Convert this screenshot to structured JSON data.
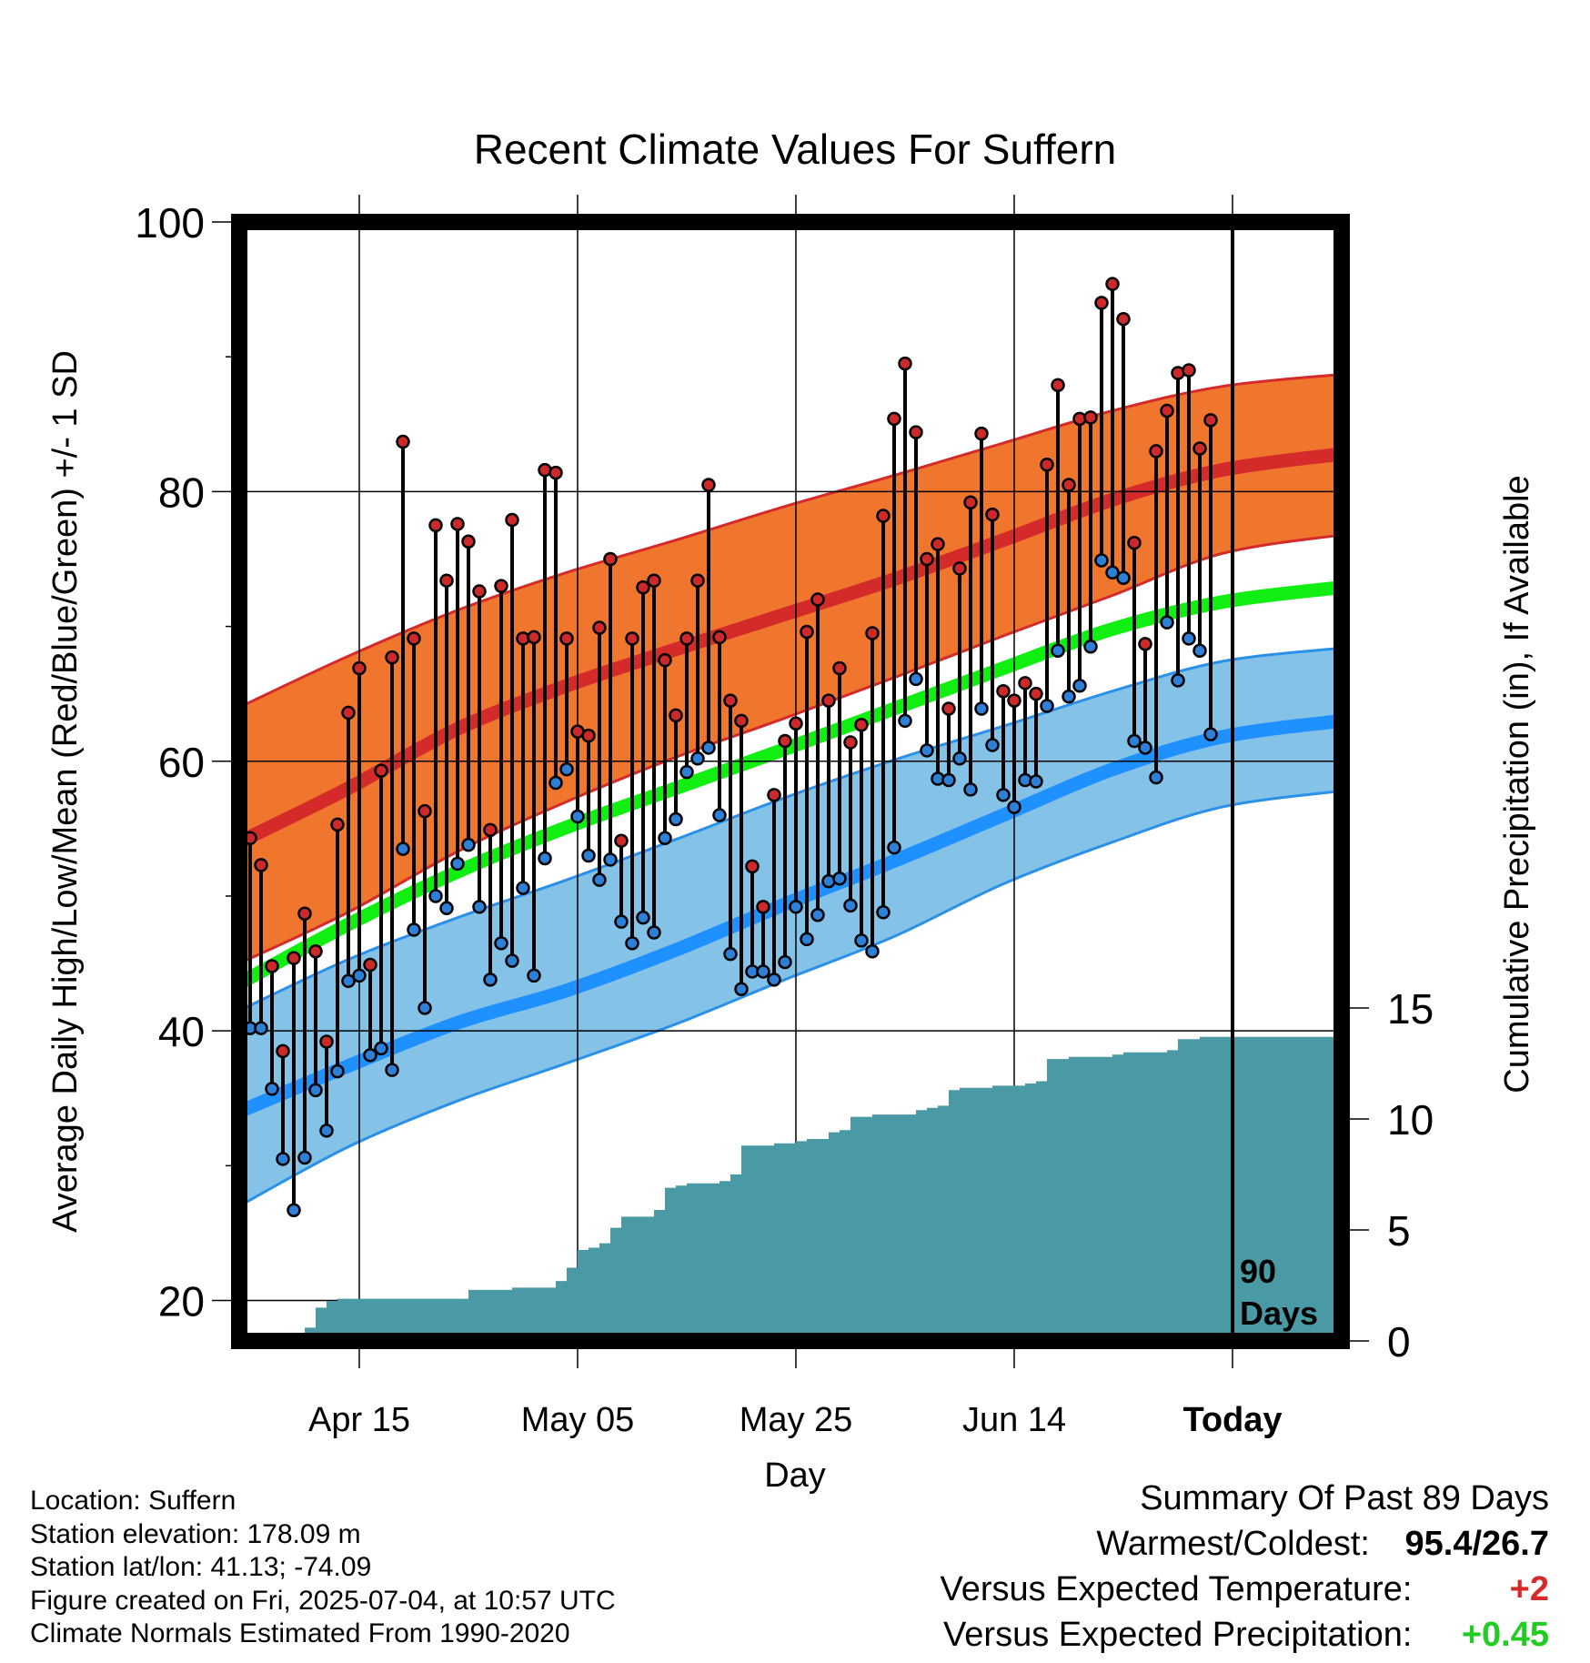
{
  "chart_data": {
    "type": "line",
    "title": "Recent Climate Values For Suffern",
    "xlabel": "Day",
    "ylabel": "Average Daily High/Low/Mean (Red/Blue/Green) +/- 1 SD",
    "y2label": "Cumulative Precipitation (in), If Available",
    "x_tick_labels": [
      "Apr 15",
      "May 05",
      "May 25",
      "Jun 14",
      "Today"
    ],
    "x_tick_days": [
      11,
      31,
      51,
      71,
      91
    ],
    "ylim": [
      17,
      100
    ],
    "yticks": [
      20,
      40,
      60,
      80,
      100
    ],
    "y2lim": [
      0,
      30
    ],
    "y2ticks": [
      0,
      5,
      10,
      15
    ],
    "xlim": [
      0,
      101
    ],
    "today_day": 91,
    "today_annotation": "90\nDays",
    "grid": true,
    "normals": {
      "days": [
        0,
        10,
        20,
        30,
        40,
        50,
        60,
        70,
        80,
        90,
        101
      ],
      "high_mean": [
        54.0,
        58.0,
        62.4,
        65.6,
        68.3,
        70.9,
        73.5,
        76.4,
        79.4,
        81.6,
        82.8
      ],
      "high_upper": [
        64.0,
        67.8,
        71.2,
        74.0,
        76.4,
        78.9,
        81.2,
        83.6,
        86.0,
        87.8,
        88.7
      ],
      "high_lower": [
        45.0,
        48.8,
        53.3,
        57.0,
        60.3,
        63.2,
        66.2,
        69.3,
        72.3,
        75.4,
        76.8
      ],
      "mean_mean": [
        43.5,
        47.9,
        51.8,
        55.1,
        58.0,
        60.9,
        63.9,
        66.9,
        69.8,
        71.8,
        72.9
      ],
      "low_mean": [
        34.0,
        37.4,
        40.6,
        43.0,
        46.0,
        49.4,
        52.6,
        56.0,
        59.4,
        61.8,
        63.0
      ],
      "low_upper": [
        41.5,
        45.3,
        48.4,
        51.2,
        54.2,
        57.3,
        60.1,
        62.6,
        65.2,
        67.4,
        68.4
      ],
      "low_lower": [
        27.0,
        31.4,
        34.8,
        37.6,
        40.5,
        43.8,
        47.0,
        50.9,
        54.0,
        56.6,
        57.8
      ]
    },
    "series": [
      {
        "name": "High",
        "color": "#cc2a2a",
        "values": [
          54.3,
          52.3,
          44.8,
          38.5,
          45.4,
          48.7,
          45.9,
          39.2,
          55.3,
          63.6,
          66.9,
          44.9,
          59.3,
          67.7,
          83.7,
          69.1,
          56.3,
          77.5,
          73.4,
          77.6,
          76.3,
          72.6,
          54.9,
          73.0,
          77.9,
          69.1,
          69.2,
          81.6,
          81.4,
          69.1,
          62.2,
          61.9,
          69.9,
          75.0,
          54.1,
          69.1,
          72.9,
          73.4,
          67.5,
          63.4,
          69.1,
          73.4,
          80.5,
          69.2,
          64.5,
          63.0,
          52.2,
          49.2,
          57.5,
          61.5,
          62.8,
          69.6,
          72.0,
          64.5,
          66.9,
          61.4,
          62.7,
          69.5,
          78.2,
          85.4,
          89.5,
          84.4,
          75.0,
          76.1,
          63.9,
          74.3,
          79.2,
          84.3,
          78.3,
          65.2,
          64.5,
          65.8,
          65.0,
          82.0,
          87.9,
          80.5,
          85.4,
          85.5,
          94.0,
          95.4,
          92.8,
          76.2,
          68.7,
          83.0,
          86.0,
          88.8,
          89.0,
          83.2,
          85.3
        ]
      },
      {
        "name": "Low",
        "color": "#2e7fd6",
        "values": [
          40.2,
          40.2,
          35.7,
          30.5,
          26.7,
          30.6,
          35.6,
          32.6,
          37.0,
          43.7,
          44.1,
          38.2,
          38.7,
          37.1,
          53.5,
          47.5,
          41.7,
          50.0,
          49.1,
          52.4,
          53.8,
          49.2,
          43.8,
          46.5,
          45.2,
          50.6,
          44.1,
          52.8,
          58.4,
          59.4,
          55.9,
          53.0,
          51.2,
          52.7,
          48.1,
          46.5,
          48.4,
          47.3,
          54.3,
          55.7,
          59.2,
          60.2,
          61.0,
          56.0,
          45.7,
          43.1,
          44.4,
          44.4,
          43.8,
          45.1,
          49.2,
          46.8,
          48.6,
          51.1,
          51.3,
          49.3,
          46.7,
          45.9,
          48.8,
          53.6,
          63.0,
          66.1,
          60.8,
          58.7,
          58.6,
          60.2,
          57.9,
          63.9,
          61.2,
          57.5,
          56.6,
          58.6,
          58.5,
          64.1,
          68.2,
          64.8,
          65.6,
          68.5,
          74.9,
          74.0,
          73.6,
          61.5,
          61.0,
          58.8,
          70.3,
          66.0,
          69.1,
          68.2,
          62.0
        ]
      }
    ],
    "precipitation_cumulative": {
      "days": [
        0,
        1,
        2,
        3,
        4,
        5,
        6,
        7,
        8,
        9,
        10,
        20,
        21,
        22,
        23,
        24,
        25,
        26,
        27,
        28,
        29,
        30,
        31,
        32,
        33,
        34,
        35,
        36,
        37,
        38,
        39,
        40,
        41,
        42,
        43,
        44,
        45,
        46,
        47,
        48,
        49,
        50,
        51,
        52,
        53,
        54,
        55,
        56,
        57,
        58,
        59,
        60,
        61,
        62,
        63,
        64,
        65,
        66,
        67,
        68,
        69,
        70,
        71,
        72,
        73,
        74,
        75,
        76,
        77,
        78,
        79,
        80,
        81,
        82,
        83,
        84,
        85,
        86,
        87,
        88,
        89,
        90,
        91,
        101
      ],
      "values": [
        0,
        0,
        0.1,
        0.1,
        0.1,
        0.1,
        0.6,
        1.5,
        1.8,
        1.9,
        1.9,
        1.9,
        2.3,
        2.3,
        2.3,
        2.3,
        2.4,
        2.4,
        2.4,
        2.4,
        2.7,
        3.3,
        4.1,
        4.2,
        4.4,
        5.1,
        5.6,
        5.6,
        5.6,
        5.9,
        6.9,
        7.0,
        7.1,
        7.1,
        7.1,
        7.2,
        7.5,
        8.8,
        8.8,
        8.8,
        8.9,
        8.9,
        9.0,
        9.1,
        9.1,
        9.4,
        9.5,
        10.1,
        10.1,
        10.2,
        10.2,
        10.2,
        10.2,
        10.4,
        10.5,
        10.6,
        11.3,
        11.4,
        11.4,
        11.4,
        11.5,
        11.5,
        11.5,
        11.6,
        11.7,
        12.7,
        12.7,
        12.8,
        12.8,
        12.8,
        12.8,
        12.9,
        13.0,
        13.0,
        13.0,
        13.0,
        13.1,
        13.6,
        13.6,
        13.7,
        13.7,
        13.7,
        13.7,
        13.7
      ],
      "color": "#4a9aa5"
    }
  },
  "footer": {
    "location": "Location: Suffern",
    "elevation": "Station elevation: 178.09 m",
    "latlon": "Station lat/lon: 41.13; -74.09",
    "created": "Figure created on Fri, 2025-07-04, at 10:57 UTC",
    "normals": "Climate Normals Estimated From 1990-2020"
  },
  "summary": {
    "heading": "Summary Of Past 89 Days",
    "warm_cold_label": "Warmest/Coldest:",
    "warm_cold_value": "95.4/26.7",
    "temp_label": "Versus Expected Temperature:",
    "temp_value": "+2",
    "temp_color": "#d42a2a",
    "precip_label": "Versus Expected Precipitation:",
    "precip_value": "+0.45",
    "precip_color": "#22cc22"
  }
}
